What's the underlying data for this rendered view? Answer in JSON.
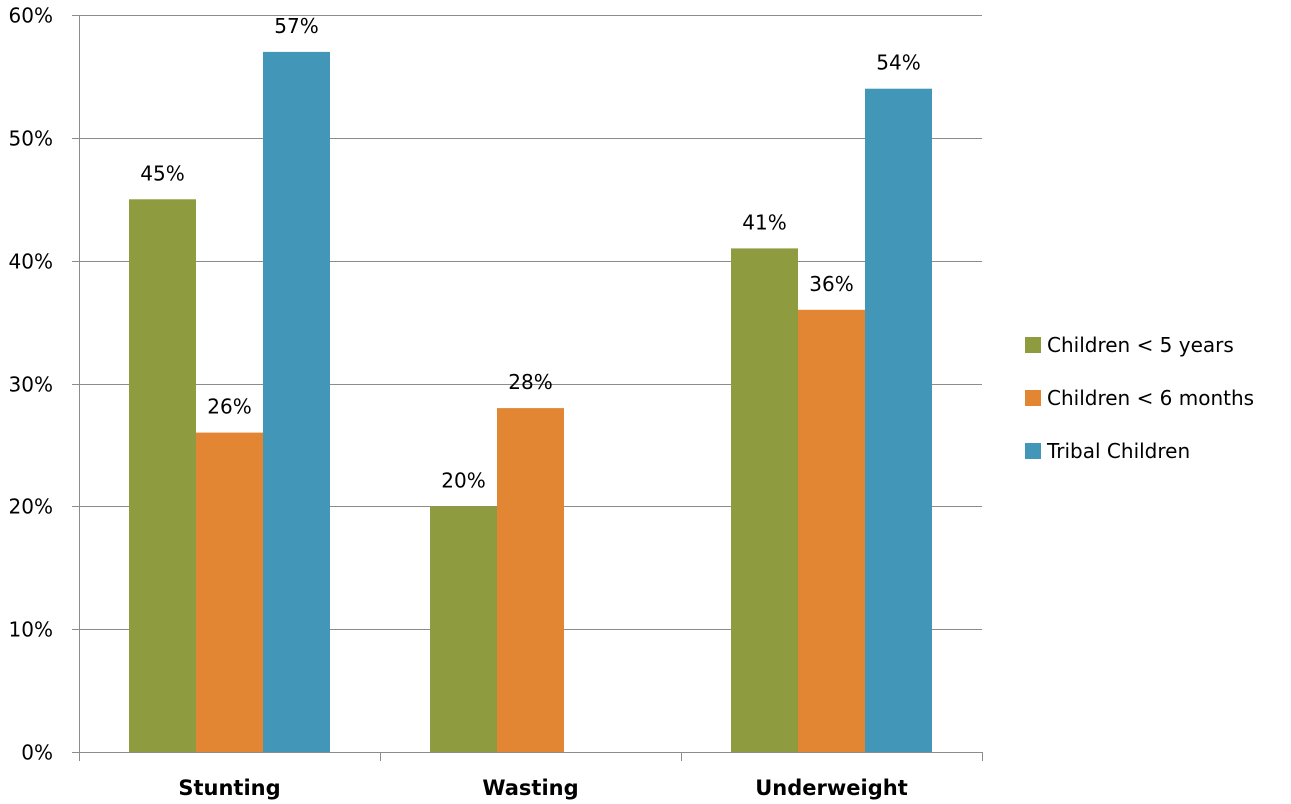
{
  "chart_data": {
    "type": "bar",
    "title": "",
    "xlabel": "",
    "ylabel": "",
    "categories": [
      "Stunting",
      "Wasting",
      "Underweight"
    ],
    "series": [
      {
        "name": "Children < 5 years",
        "color": "#8f9b3f",
        "values": [
          45,
          20,
          41
        ],
        "labels": [
          "45%",
          "20%",
          "41%"
        ]
      },
      {
        "name": "Children < 6 months",
        "color": "#e28634",
        "values": [
          26,
          28,
          36
        ],
        "labels": [
          "26%",
          "28%",
          "36%"
        ]
      },
      {
        "name": "Tribal Children",
        "color": "#4297b8",
        "values": [
          57,
          null,
          54
        ],
        "labels": [
          "57%",
          null,
          "54%"
        ]
      }
    ],
    "ylim": [
      0,
      60
    ],
    "yticks": [
      0,
      10,
      20,
      30,
      40,
      50,
      60
    ],
    "ytick_labels": [
      "0%",
      "10%",
      "20%",
      "30%",
      "40%",
      "50%",
      "60%"
    ],
    "grid": true,
    "legend_position": "right"
  }
}
